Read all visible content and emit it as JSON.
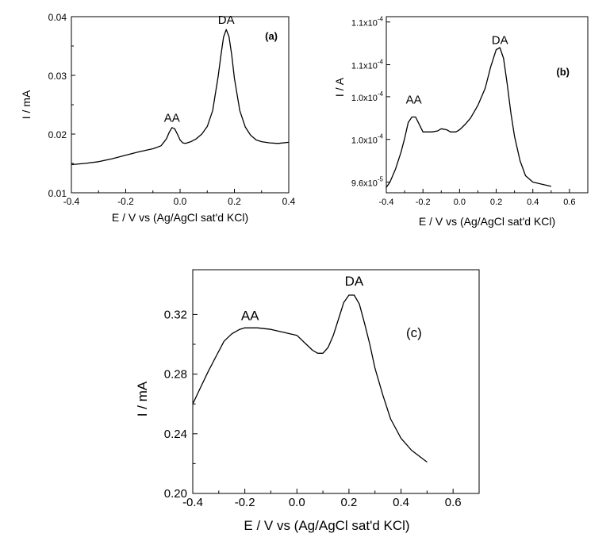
{
  "chart_data": [
    {
      "id": "a",
      "type": "line",
      "panel_label": "(a)",
      "xlabel": "E / V vs (Ag/AgCl sat'd KCl)",
      "ylabel": "I / mA",
      "xlim": [
        -0.4,
        0.4
      ],
      "ylim": [
        0.01,
        0.04
      ],
      "xticks": [
        -0.4,
        -0.2,
        0.0,
        0.2,
        0.4
      ],
      "xtick_labels": [
        "-0.4",
        "-0.2",
        "0.0",
        "0.2",
        "0.4"
      ],
      "yticks": [
        0.01,
        0.02,
        0.03,
        0.04
      ],
      "ytick_labels": [
        "0.01",
        "0.02",
        "0.03",
        "0.04"
      ],
      "annotations": [
        {
          "text": "AA",
          "x": -0.03,
          "y": 0.0213
        },
        {
          "text": "DA",
          "x": 0.17,
          "y": 0.038
        }
      ],
      "series": [
        {
          "x": [
            -0.4,
            -0.35,
            -0.3,
            -0.25,
            -0.2,
            -0.15,
            -0.1,
            -0.07,
            -0.05,
            -0.04,
            -0.03,
            -0.02,
            -0.01,
            0.0,
            0.01,
            0.02,
            0.04,
            0.06,
            0.08,
            0.1,
            0.12,
            0.14,
            0.15,
            0.16,
            0.17,
            0.18,
            0.19,
            0.2,
            0.22,
            0.24,
            0.26,
            0.28,
            0.3,
            0.33,
            0.36,
            0.4
          ],
          "y": [
            0.0148,
            0.015,
            0.0153,
            0.0158,
            0.0164,
            0.017,
            0.0175,
            0.018,
            0.0192,
            0.0203,
            0.0211,
            0.0209,
            0.02,
            0.019,
            0.0185,
            0.0184,
            0.0187,
            0.0192,
            0.02,
            0.0213,
            0.024,
            0.0298,
            0.0333,
            0.0365,
            0.0378,
            0.0366,
            0.0335,
            0.0295,
            0.024,
            0.0212,
            0.0198,
            0.019,
            0.0187,
            0.0185,
            0.0184,
            0.0186
          ]
        }
      ]
    },
    {
      "id": "b",
      "type": "line",
      "panel_label": "(b)",
      "xlabel": "E / V vs (Ag/AgCl sat'd KCl)",
      "ylabel": "I / A",
      "xlim": [
        -0.4,
        0.7
      ],
      "ylim": [
        9.5e-05,
        0.0001115
      ],
      "xticks": [
        -0.4,
        -0.2,
        0.0,
        0.2,
        0.4,
        0.6
      ],
      "xtick_labels": [
        "-0.4",
        "-0.2",
        "0.0",
        "0.2",
        "0.4",
        "0.6"
      ],
      "yticks": [
        9.6e-05,
        0.0001,
        0.000104,
        0.000107,
        0.000111
      ],
      "ytick_labels": [
        {
          "mant": "9.6x10",
          "exp": "-5"
        },
        {
          "mant": "1.0x10",
          "exp": "-4"
        },
        {
          "mant": "1.0x10",
          "exp": "-4"
        },
        {
          "mant": "1.1x10",
          "exp": "-4"
        },
        {
          "mant": "1.1x10",
          "exp": "-4"
        }
      ],
      "annotations": [
        {
          "text": "AA",
          "x": -0.25,
          "y": 0.0001026
        },
        {
          "text": "DA",
          "x": 0.22,
          "y": 0.0001082
        }
      ],
      "series": [
        {
          "x": [
            -0.4,
            -0.38,
            -0.35,
            -0.32,
            -0.3,
            -0.28,
            -0.26,
            -0.24,
            -0.22,
            -0.2,
            -0.18,
            -0.15,
            -0.12,
            -0.1,
            -0.07,
            -0.05,
            -0.02,
            0.0,
            0.03,
            0.06,
            0.1,
            0.14,
            0.17,
            0.2,
            0.22,
            0.24,
            0.26,
            0.28,
            0.3,
            0.33,
            0.36,
            0.4,
            0.45,
            0.5
          ],
          "y": [
            9.55e-05,
            9.6e-05,
            9.72e-05,
            9.88e-05,
            0.0001001,
            0.0001016,
            0.0001021,
            0.0001021,
            0.0001014,
            0.0001007,
            0.0001007,
            0.0001007,
            0.0001008,
            0.000101,
            0.0001009,
            0.0001007,
            0.0001007,
            0.0001009,
            0.0001014,
            0.000102,
            0.0001032,
            0.0001048,
            0.0001068,
            0.0001084,
            0.0001086,
            0.0001076,
            0.0001052,
            0.0001025,
            0.0001003,
            9.8e-05,
            9.66e-05,
            9.6e-05,
            9.58e-05,
            9.56e-05
          ]
        }
      ]
    },
    {
      "id": "c",
      "type": "line",
      "panel_label": "(c)",
      "xlabel": "E / V vs (Ag/AgCl sat'd KCl)",
      "ylabel": "I / mA",
      "xlim": [
        -0.4,
        0.7
      ],
      "ylim": [
        0.2,
        0.35
      ],
      "xticks": [
        -0.4,
        -0.2,
        0.0,
        0.2,
        0.4,
        0.6
      ],
      "xtick_labels": [
        "-0.4",
        "-0.2",
        "0.0",
        "0.2",
        "0.4",
        "0.6"
      ],
      "yticks": [
        0.2,
        0.24,
        0.28,
        0.32
      ],
      "ytick_labels": [
        "0.20",
        "0.24",
        "0.28",
        "0.32"
      ],
      "annotations": [
        {
          "text": "AA",
          "x": -0.18,
          "y": 0.311
        },
        {
          "text": "DA",
          "x": 0.22,
          "y": 0.334
        }
      ],
      "series": [
        {
          "x": [
            -0.4,
            -0.37,
            -0.34,
            -0.31,
            -0.28,
            -0.25,
            -0.22,
            -0.2,
            -0.15,
            -0.1,
            -0.05,
            0.0,
            0.03,
            0.06,
            0.08,
            0.1,
            0.12,
            0.14,
            0.16,
            0.18,
            0.2,
            0.22,
            0.24,
            0.26,
            0.28,
            0.3,
            0.33,
            0.36,
            0.4,
            0.44,
            0.47,
            0.5
          ],
          "y": [
            0.26,
            0.271,
            0.282,
            0.292,
            0.302,
            0.307,
            0.31,
            0.311,
            0.311,
            0.31,
            0.308,
            0.306,
            0.301,
            0.296,
            0.294,
            0.294,
            0.298,
            0.306,
            0.317,
            0.328,
            0.333,
            0.333,
            0.327,
            0.314,
            0.3,
            0.284,
            0.266,
            0.25,
            0.237,
            0.229,
            0.225,
            0.221
          ]
        }
      ]
    }
  ]
}
